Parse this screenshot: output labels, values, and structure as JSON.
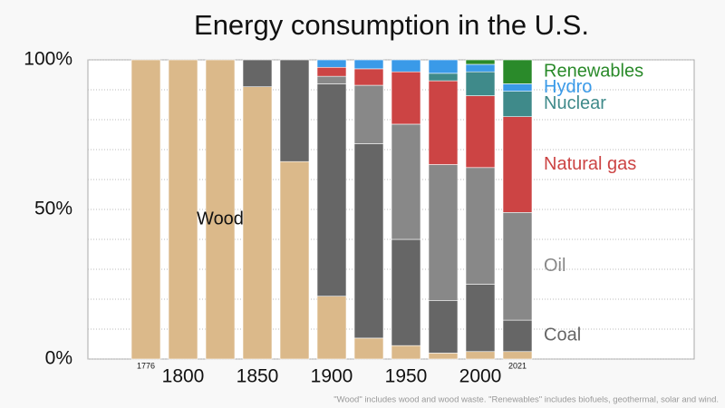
{
  "chart_data": {
    "type": "stacked_bar",
    "title": "Energy consumption in the U.S.",
    "footnote": "\"Wood\" includes wood and wood waste. \"Renewables\" includes biofuels, geothermal, solar and wind.",
    "categories": [
      "1776",
      "1800",
      null,
      "1850",
      null,
      "1900",
      null,
      "1950",
      null,
      "2000",
      "2021"
    ],
    "series": [
      {
        "name": "Wood",
        "color": "#dbb98a",
        "values": [
          100,
          100,
          100,
          91,
          66,
          21,
          7,
          4.5,
          2,
          2.5,
          2.5
        ]
      },
      {
        "name": "Coal",
        "color": "#666666",
        "values": [
          0,
          0,
          0,
          9,
          34,
          71,
          65,
          35.5,
          17.5,
          22.5,
          10.5
        ]
      },
      {
        "name": "Oil",
        "color": "#888888",
        "values": [
          0,
          0,
          0,
          0,
          0,
          2.5,
          19.5,
          38.5,
          45.5,
          39,
          36
        ]
      },
      {
        "name": "Natural gas",
        "color": "#cc4444",
        "values": [
          0,
          0,
          0,
          0,
          0,
          3,
          5.5,
          17.5,
          28,
          24,
          32
        ]
      },
      {
        "name": "Nuclear",
        "color": "#3f8a8a",
        "values": [
          0,
          0,
          0,
          0,
          0,
          0,
          0,
          0,
          2.5,
          8,
          8.5
        ]
      },
      {
        "name": "Hydro",
        "color": "#3a9ae8",
        "values": [
          0,
          0,
          0,
          0,
          0,
          2.5,
          3,
          4,
          4.5,
          2.5,
          2.5
        ]
      },
      {
        "name": "Renewables",
        "color": "#2a8a2a",
        "values": [
          0,
          0,
          0,
          0,
          0,
          0,
          0,
          0,
          0,
          1.5,
          8
        ]
      }
    ],
    "ylim": [
      0,
      100
    ],
    "yticks": [
      {
        "value": 0,
        "label": "0%"
      },
      {
        "value": 50,
        "label": "50%"
      },
      {
        "value": 100,
        "label": "100%"
      }
    ],
    "y_minor_ticks": [
      10,
      20,
      30,
      40,
      60,
      70,
      80,
      90
    ],
    "grid": true
  }
}
